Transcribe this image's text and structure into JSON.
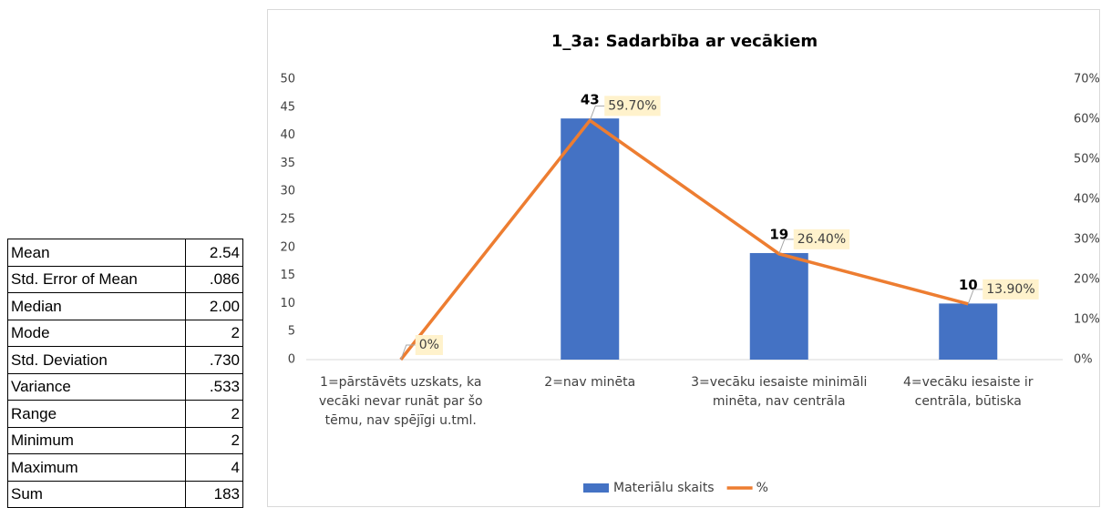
{
  "table": {
    "rows": [
      [
        "Mean",
        "2.54"
      ],
      [
        "Std. Error of Mean",
        ".086"
      ],
      [
        "Median",
        "2.00"
      ],
      [
        "Mode",
        "2"
      ],
      [
        "Std. Deviation",
        ".730"
      ],
      [
        "Variance",
        ".533"
      ],
      [
        "Range",
        "2"
      ],
      [
        "Minimum",
        "2"
      ],
      [
        "Maximum",
        "4"
      ],
      [
        "Sum",
        "183"
      ]
    ]
  },
  "chart_data": {
    "type": "bar_line",
    "title": "1_3a: Sadarbība ar vecākiem",
    "categories": [
      "1=pārstāvēts uzskats, ka vecāki nevar runāt par šo tēmu, nav spējīgi u.tml.",
      "2=nav minēta",
      "3=vecāku iesaiste minimāli minēta, nav centrāla",
      "4=vecāku iesaiste ir centrāla, būtiska"
    ],
    "series": [
      {
        "name": "Materiālu skaits",
        "color": "#4472c4",
        "values": [
          null,
          43,
          19,
          10
        ]
      },
      {
        "name": "%",
        "color": "#ed7d31",
        "axis": "y2",
        "values": [
          0,
          59.7,
          26.4,
          13.9
        ],
        "value_labels": [
          "0%",
          "59.70%",
          "26.40%",
          "13.90%"
        ]
      }
    ],
    "ylim": [
      0,
      50
    ],
    "yticks": [
      0,
      5,
      10,
      15,
      20,
      25,
      30,
      35,
      40,
      45,
      50
    ],
    "y2lim": [
      0,
      70
    ],
    "y2ticks": [
      {
        "value": 0,
        "label": "0%"
      },
      {
        "value": 10,
        "label": "10%"
      },
      {
        "value": 20,
        "label": "20%"
      },
      {
        "value": 30,
        "label": "30%"
      },
      {
        "value": 40,
        "label": "40%"
      },
      {
        "value": 50,
        "label": "50%"
      },
      {
        "value": 60,
        "label": "60%"
      },
      {
        "value": 70,
        "label": "70%"
      }
    ],
    "grid": false,
    "legend": "bottom"
  }
}
